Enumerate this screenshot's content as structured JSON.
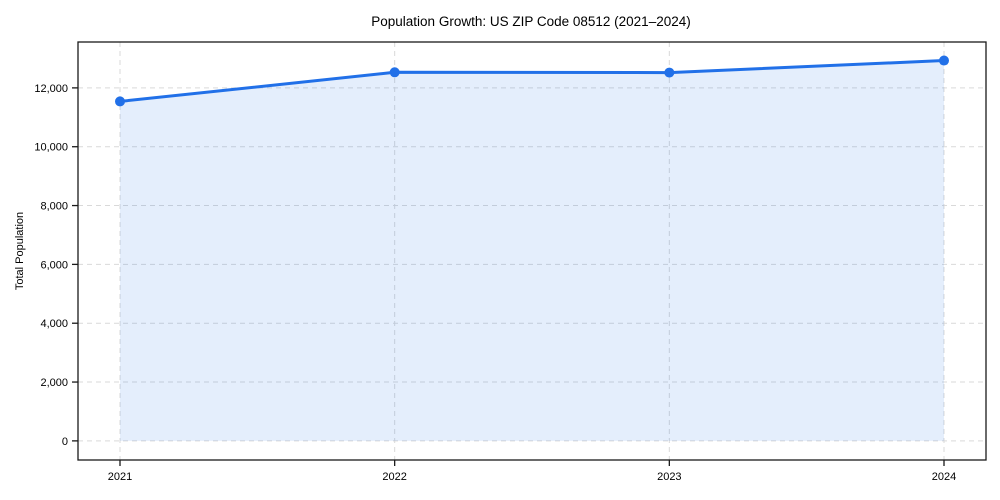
{
  "figure": {
    "title": "Population Growth: US ZIP Code 08512 (2021–2024)",
    "ylabel": "Total Population"
  },
  "chart_data": {
    "type": "line",
    "style": "line-with-markers-and-area-fill",
    "title": "Population Growth: US ZIP Code 08512 (2021–2024)",
    "xlabel": "",
    "ylabel": "Total Population",
    "categories": [
      "2021",
      "2022",
      "2023",
      "2024"
    ],
    "series": [
      {
        "name": "Total Population",
        "values": [
          11540,
          12530,
          12520,
          12930
        ]
      }
    ],
    "yticks": [
      0,
      2000,
      4000,
      6000,
      8000,
      10000,
      12000
    ],
    "ytick_labels": [
      "0",
      "2,000",
      "4,000",
      "6,000",
      "8,000",
      "10,000",
      "12,000"
    ],
    "ylim": [
      -650,
      13560
    ],
    "grid": true,
    "grid_style": "dashed",
    "legend_position": "none",
    "marker": "circle",
    "colors": {
      "line": "#2170e8",
      "marker": "#2170e8",
      "fill": "#2170e8",
      "fill_opacity": 0.12,
      "grid": "#d9d9d9",
      "spine": "#1a1a1a",
      "text": "#000000",
      "background": "#ffffff"
    }
  }
}
